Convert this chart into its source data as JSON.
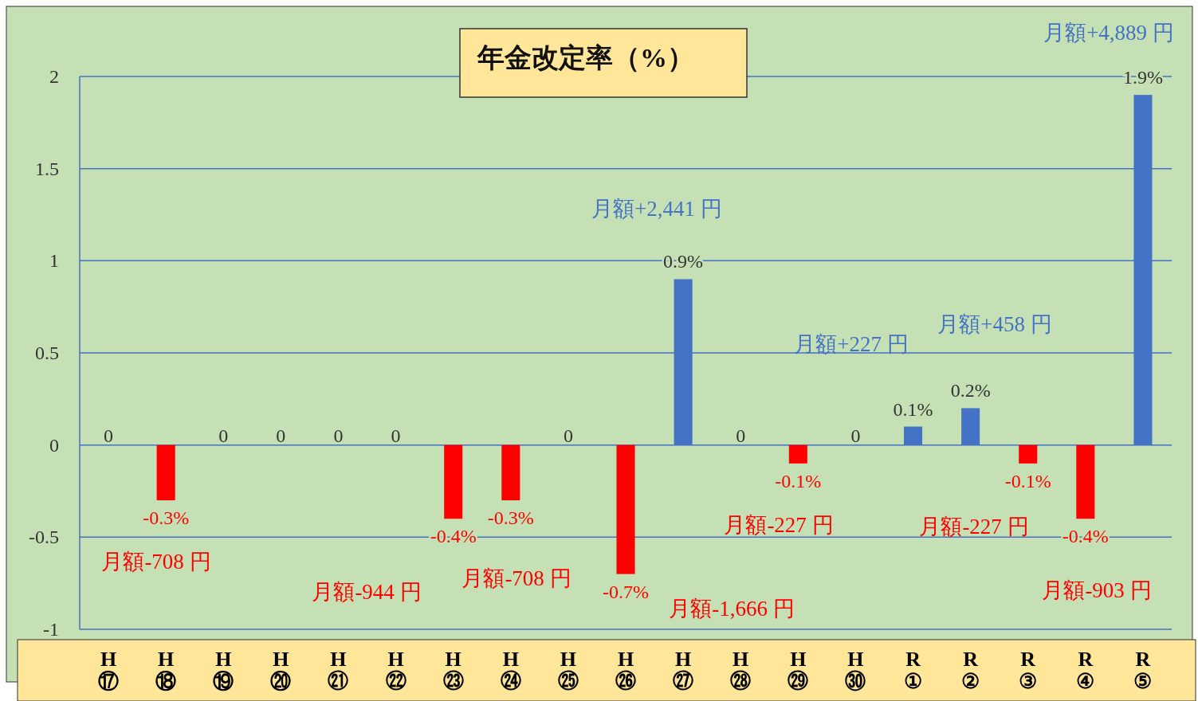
{
  "chart_data": {
    "type": "bar",
    "title": "年金改定率（%）",
    "categories": [
      "H\n⑰",
      "H\n⑱",
      "H\n⑲",
      "H\n⑳",
      "H\n㉑",
      "H\n㉒",
      "H\n㉓",
      "H\n㉔",
      "H\n㉕",
      "H\n㉖",
      "H\n㉗",
      "H\n㉘",
      "H\n㉙",
      "H\n㉚",
      "R\n①",
      "R\n②",
      "R\n③",
      "R\n④",
      "R\n⑤"
    ],
    "values": [
      0,
      -0.3,
      0,
      0,
      0,
      0,
      -0.4,
      -0.3,
      0,
      -0.7,
      0.9,
      0,
      -0.1,
      0,
      0.1,
      0.2,
      -0.1,
      -0.4,
      1.9
    ],
    "colors": [
      "#4472c4",
      "#ff0000",
      "#4472c4",
      "#4472c4",
      "#4472c4",
      "#4472c4",
      "#ff0000",
      "#ff0000",
      "#4472c4",
      "#ff0000",
      "#4472c4",
      "#4472c4",
      "#ff0000",
      "#4472c4",
      "#4472c4",
      "#4472c4",
      "#ff0000",
      "#ff0000",
      "#4472c4"
    ],
    "value_labels": [
      "0",
      "-0.3%",
      "0",
      "0",
      "0",
      "0",
      "-0.4%",
      "-0.3%",
      "0",
      "-0.7%",
      "0.9%",
      "0",
      "-0.1%",
      "0",
      "0.1%",
      "0.2%",
      "-0.1%",
      "-0.4%",
      "1.9%"
    ],
    "ylim": [
      -1,
      2
    ],
    "yticks": [
      -1,
      -0.5,
      0,
      0.5,
      1,
      1.5,
      2
    ],
    "grid": "y",
    "annotations": [
      "月額-708 円",
      "月額-944 円",
      "月額-708 円",
      "月額-1,666 円",
      "月額+2,441 円",
      "月額-227 円",
      "月額+227 円",
      "月額+458 円",
      "月額-227 円",
      "月額-903 円",
      "月額+4,889 円"
    ]
  }
}
